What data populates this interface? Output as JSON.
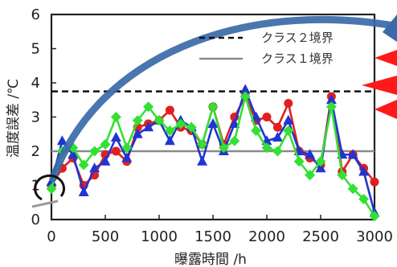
{
  "chart_data": {
    "type": "line",
    "xlabel": "曝露時間 /h",
    "ylabel": "温度誤差 /℃",
    "xlim": [
      0,
      3000
    ],
    "ylim": [
      0,
      6
    ],
    "x_ticks": [
      "0",
      "500",
      "1000",
      "1500",
      "2000",
      "2500",
      "3000"
    ],
    "y_ticks": [
      "0",
      "1",
      "2",
      "3",
      "4",
      "5",
      "6"
    ],
    "grid": false,
    "legend_position": "top-right",
    "reference_lines": [
      {
        "name": "クラス２境界",
        "value": 3.75,
        "style": "dashed",
        "color": "#111111"
      },
      {
        "name": "クラス１境界",
        "value": 2.0,
        "style": "solid",
        "color": "#8a8a8a"
      }
    ],
    "series": [
      {
        "color": "#e02020",
        "marker": "circle",
        "x": [
          0,
          100,
          200,
          300,
          400,
          500,
          600,
          700,
          800,
          900,
          1000,
          1100,
          1200,
          1300,
          1400,
          1500,
          1600,
          1700,
          1800,
          1900,
          2000,
          2100,
          2200,
          2300,
          2400,
          2500,
          2600,
          2700,
          2800,
          2900,
          3000
        ],
        "y": [
          1.0,
          1.5,
          1.8,
          1.0,
          1.3,
          1.9,
          2.0,
          1.7,
          2.7,
          2.8,
          2.9,
          3.2,
          2.7,
          2.6,
          2.2,
          3.3,
          2.2,
          3.0,
          3.6,
          2.9,
          3.0,
          2.7,
          3.4,
          2.0,
          1.8,
          1.6,
          3.6,
          1.4,
          1.9,
          1.5,
          1.1
        ]
      },
      {
        "color": "#2035d0",
        "marker": "triangle",
        "x": [
          0,
          100,
          200,
          300,
          400,
          500,
          600,
          700,
          800,
          900,
          1000,
          1100,
          1200,
          1300,
          1400,
          1500,
          1600,
          1700,
          1800,
          1900,
          2000,
          2100,
          2200,
          2300,
          2400,
          2500,
          2600,
          2700,
          2800,
          2900,
          3000
        ],
        "y": [
          1.1,
          2.3,
          1.9,
          0.8,
          1.5,
          1.7,
          2.4,
          1.8,
          2.5,
          2.7,
          2.9,
          2.3,
          2.9,
          2.7,
          1.7,
          2.8,
          2.0,
          2.8,
          3.8,
          3.0,
          2.3,
          2.4,
          2.9,
          2.0,
          1.9,
          1.5,
          3.5,
          1.9,
          1.9,
          1.4,
          0.2
        ]
      },
      {
        "color": "#33e033",
        "marker": "diamond",
        "x": [
          0,
          100,
          200,
          300,
          400,
          500,
          600,
          700,
          800,
          900,
          1000,
          1100,
          1200,
          1300,
          1400,
          1500,
          1600,
          1700,
          1800,
          1900,
          2000,
          2100,
          2200,
          2300,
          2400,
          2500,
          2600,
          2700,
          2800,
          2900,
          3000
        ],
        "y": [
          0.9,
          2.0,
          2.1,
          1.6,
          2.0,
          2.2,
          3.0,
          2.1,
          2.9,
          3.3,
          2.9,
          2.6,
          2.8,
          2.7,
          2.2,
          3.3,
          2.1,
          2.3,
          3.6,
          2.6,
          2.1,
          2.0,
          2.6,
          1.7,
          1.3,
          1.7,
          3.3,
          1.3,
          0.9,
          0.6,
          0.1
        ]
      }
    ]
  },
  "annotations": {
    "arrow_color": "#3a6aa8",
    "triangle_color": "#ff1a1a",
    "circle_color": "#111111"
  }
}
